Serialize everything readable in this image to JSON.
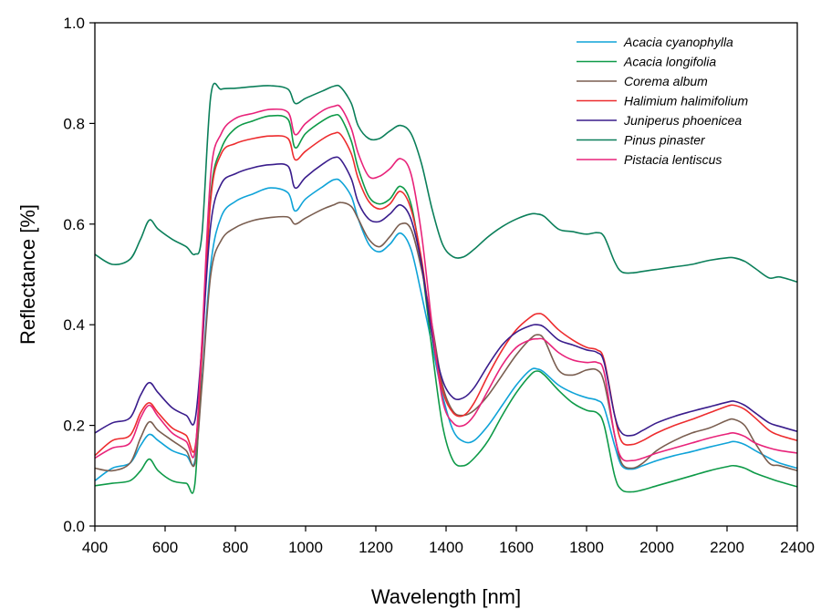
{
  "chart_data": {
    "type": "line",
    "title": "",
    "xlabel": "Wavelength [nm]",
    "ylabel": "Reflectance [%]",
    "xlim": [
      400,
      2400
    ],
    "ylim": [
      0.0,
      1.0
    ],
    "xticks": [
      "400",
      "600",
      "800",
      "1000",
      "1200",
      "1400",
      "1600",
      "1800",
      "2000",
      "2200",
      "2400"
    ],
    "yticks": [
      "0.0",
      "0.2",
      "0.4",
      "0.6",
      "0.8",
      "1.0"
    ],
    "grid": false,
    "legend_position": "top-right",
    "x": [
      400,
      450,
      500,
      530,
      555,
      580,
      620,
      660,
      685,
      705,
      730,
      760,
      800,
      850,
      900,
      950,
      970,
      1000,
      1050,
      1080,
      1100,
      1130,
      1150,
      1180,
      1210,
      1240,
      1270,
      1300,
      1330,
      1360,
      1390,
      1420,
      1450,
      1480,
      1520,
      1560,
      1600,
      1640,
      1660,
      1680,
      1720,
      1760,
      1800,
      1830,
      1850,
      1880,
      1900,
      1930,
      1960,
      2000,
      2050,
      2100,
      2150,
      2200,
      2220,
      2250,
      2280,
      2320,
      2350,
      2400
    ],
    "series": [
      {
        "name": "Acacia cyanophylla",
        "color": "#0fa3d8",
        "values": [
          0.09,
          0.115,
          0.125,
          0.16,
          0.182,
          0.17,
          0.15,
          0.14,
          0.13,
          0.29,
          0.52,
          0.615,
          0.645,
          0.66,
          0.672,
          0.662,
          0.626,
          0.65,
          0.675,
          0.688,
          0.685,
          0.655,
          0.61,
          0.56,
          0.545,
          0.56,
          0.582,
          0.55,
          0.46,
          0.36,
          0.26,
          0.19,
          0.168,
          0.17,
          0.2,
          0.24,
          0.28,
          0.31,
          0.312,
          0.305,
          0.28,
          0.265,
          0.255,
          0.25,
          0.235,
          0.16,
          0.12,
          0.113,
          0.12,
          0.13,
          0.14,
          0.148,
          0.157,
          0.165,
          0.168,
          0.162,
          0.15,
          0.135,
          0.125,
          0.115
        ]
      },
      {
        "name": "Acacia longifolia",
        "color": "#0e9a48",
        "values": [
          0.08,
          0.085,
          0.09,
          0.11,
          0.133,
          0.11,
          0.09,
          0.085,
          0.085,
          0.35,
          0.66,
          0.75,
          0.79,
          0.805,
          0.815,
          0.808,
          0.752,
          0.78,
          0.806,
          0.816,
          0.812,
          0.765,
          0.71,
          0.655,
          0.64,
          0.65,
          0.675,
          0.64,
          0.52,
          0.35,
          0.2,
          0.13,
          0.12,
          0.135,
          0.17,
          0.22,
          0.265,
          0.3,
          0.308,
          0.3,
          0.27,
          0.245,
          0.23,
          0.225,
          0.2,
          0.1,
          0.072,
          0.068,
          0.072,
          0.08,
          0.09,
          0.1,
          0.11,
          0.118,
          0.12,
          0.115,
          0.105,
          0.095,
          0.088,
          0.078
        ]
      },
      {
        "name": "Corema album",
        "color": "#7a5e50",
        "values": [
          0.115,
          0.11,
          0.125,
          0.175,
          0.207,
          0.19,
          0.17,
          0.15,
          0.125,
          0.28,
          0.5,
          0.568,
          0.593,
          0.607,
          0.613,
          0.614,
          0.6,
          0.612,
          0.63,
          0.638,
          0.643,
          0.635,
          0.61,
          0.57,
          0.555,
          0.575,
          0.6,
          0.59,
          0.51,
          0.4,
          0.28,
          0.228,
          0.22,
          0.23,
          0.26,
          0.3,
          0.34,
          0.372,
          0.38,
          0.37,
          0.31,
          0.3,
          0.31,
          0.31,
          0.285,
          0.18,
          0.125,
          0.115,
          0.125,
          0.15,
          0.17,
          0.185,
          0.195,
          0.21,
          0.212,
          0.2,
          0.165,
          0.125,
          0.12,
          0.11
        ]
      },
      {
        "name": "Halimium halimifolium",
        "color": "#ed2c2e",
        "values": [
          0.14,
          0.17,
          0.18,
          0.225,
          0.245,
          0.225,
          0.195,
          0.18,
          0.155,
          0.34,
          0.65,
          0.74,
          0.76,
          0.77,
          0.775,
          0.77,
          0.728,
          0.745,
          0.77,
          0.78,
          0.778,
          0.74,
          0.69,
          0.645,
          0.63,
          0.64,
          0.665,
          0.63,
          0.53,
          0.38,
          0.27,
          0.225,
          0.22,
          0.245,
          0.3,
          0.35,
          0.39,
          0.415,
          0.422,
          0.418,
          0.39,
          0.37,
          0.355,
          0.35,
          0.33,
          0.22,
          0.168,
          0.162,
          0.17,
          0.185,
          0.2,
          0.212,
          0.225,
          0.238,
          0.24,
          0.232,
          0.215,
          0.19,
          0.18,
          0.17
        ]
      },
      {
        "name": "Juniperus phoenicea",
        "color": "#3a1d8c",
        "values": [
          0.185,
          0.205,
          0.215,
          0.26,
          0.285,
          0.265,
          0.235,
          0.22,
          0.21,
          0.36,
          0.6,
          0.68,
          0.7,
          0.712,
          0.718,
          0.715,
          0.672,
          0.693,
          0.72,
          0.732,
          0.728,
          0.69,
          0.643,
          0.61,
          0.605,
          0.62,
          0.638,
          0.61,
          0.52,
          0.38,
          0.29,
          0.255,
          0.255,
          0.275,
          0.32,
          0.36,
          0.385,
          0.398,
          0.4,
          0.395,
          0.37,
          0.36,
          0.35,
          0.345,
          0.325,
          0.22,
          0.185,
          0.18,
          0.19,
          0.205,
          0.218,
          0.228,
          0.237,
          0.246,
          0.248,
          0.24,
          0.225,
          0.205,
          0.198,
          0.188
        ]
      },
      {
        "name": "Pinus pinaster",
        "color": "#0b7f5a",
        "values": [
          0.54,
          0.52,
          0.53,
          0.57,
          0.608,
          0.59,
          0.57,
          0.555,
          0.54,
          0.58,
          0.855,
          0.868,
          0.87,
          0.873,
          0.875,
          0.868,
          0.84,
          0.85,
          0.865,
          0.874,
          0.872,
          0.84,
          0.795,
          0.77,
          0.77,
          0.785,
          0.796,
          0.78,
          0.72,
          0.63,
          0.56,
          0.535,
          0.535,
          0.55,
          0.575,
          0.595,
          0.61,
          0.62,
          0.62,
          0.615,
          0.59,
          0.585,
          0.58,
          0.583,
          0.575,
          0.525,
          0.505,
          0.503,
          0.506,
          0.51,
          0.515,
          0.52,
          0.528,
          0.533,
          0.533,
          0.526,
          0.512,
          0.493,
          0.495,
          0.485
        ]
      },
      {
        "name": "Pistacia lentiscus",
        "color": "#e8237a",
        "values": [
          0.135,
          0.155,
          0.165,
          0.215,
          0.24,
          0.218,
          0.185,
          0.168,
          0.148,
          0.37,
          0.7,
          0.78,
          0.81,
          0.82,
          0.828,
          0.822,
          0.778,
          0.8,
          0.826,
          0.834,
          0.832,
          0.79,
          0.74,
          0.695,
          0.695,
          0.71,
          0.73,
          0.7,
          0.58,
          0.4,
          0.25,
          0.205,
          0.2,
          0.22,
          0.27,
          0.32,
          0.355,
          0.37,
          0.372,
          0.37,
          0.345,
          0.33,
          0.325,
          0.325,
          0.305,
          0.18,
          0.135,
          0.13,
          0.135,
          0.145,
          0.155,
          0.165,
          0.175,
          0.183,
          0.185,
          0.178,
          0.165,
          0.155,
          0.15,
          0.145
        ]
      }
    ]
  }
}
